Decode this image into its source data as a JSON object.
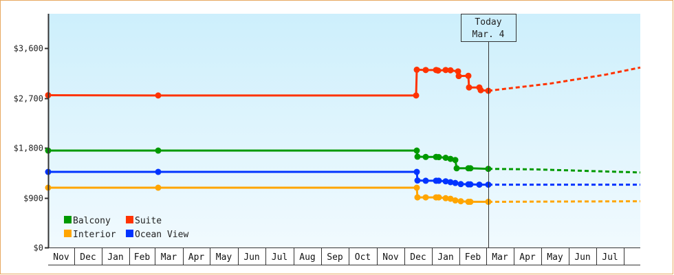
{
  "chart_data": {
    "type": "line",
    "title": "",
    "xlabel": "",
    "ylabel": "",
    "ylim": [
      0,
      4250
    ],
    "yticks": [
      {
        "value": 0,
        "label": "$0"
      },
      {
        "value": 900,
        "label": "$900"
      },
      {
        "value": 1800,
        "label": "$1,800"
      },
      {
        "value": 2700,
        "label": "$2,700"
      },
      {
        "value": 3600,
        "label": "$3,600"
      }
    ],
    "months": [
      "Nov",
      "Dec",
      "Jan",
      "Feb",
      "Mar",
      "Apr",
      "May",
      "Jun",
      "Jul",
      "Aug",
      "Sep",
      "Oct",
      "Nov",
      "Dec",
      "Jan",
      "Feb",
      "Mar",
      "Apr",
      "May",
      "Jun",
      "Jul"
    ],
    "grid": false,
    "legend_position": "bottom-left inside",
    "today_marker": {
      "line1": "Today",
      "line2": "Mar. 4"
    },
    "series": [
      {
        "name": "Balcony",
        "color": "#009900",
        "points": [
          {
            "x": 70,
            "v": 1750
          },
          {
            "x": 230,
            "v": 1750
          },
          {
            "x": 606,
            "v": 1750
          },
          {
            "x": 607,
            "v": 1640
          },
          {
            "x": 619,
            "v": 1635
          },
          {
            "x": 634,
            "v": 1635
          },
          {
            "x": 638,
            "v": 1632
          },
          {
            "x": 648,
            "v": 1620
          },
          {
            "x": 655,
            "v": 1600
          },
          {
            "x": 662,
            "v": 1580
          },
          {
            "x": 664,
            "v": 1430
          },
          {
            "x": 681,
            "v": 1430
          },
          {
            "x": 684,
            "v": 1430
          },
          {
            "x": 710,
            "v": 1420
          }
        ],
        "projection": [
          {
            "x": 710,
            "v": 1420
          },
          {
            "x": 780,
            "v": 1410
          },
          {
            "x": 860,
            "v": 1380
          },
          {
            "x": 931,
            "v": 1355
          }
        ]
      },
      {
        "name": "Suite",
        "color": "#ff3300",
        "points": [
          {
            "x": 70,
            "v": 2750
          },
          {
            "x": 230,
            "v": 2745
          },
          {
            "x": 605,
            "v": 2745
          },
          {
            "x": 606,
            "v": 3210
          },
          {
            "x": 619,
            "v": 3205
          },
          {
            "x": 634,
            "v": 3205
          },
          {
            "x": 637,
            "v": 3195
          },
          {
            "x": 648,
            "v": 3205
          },
          {
            "x": 655,
            "v": 3200
          },
          {
            "x": 666,
            "v": 3180
          },
          {
            "x": 667,
            "v": 3095
          },
          {
            "x": 681,
            "v": 3100
          },
          {
            "x": 682,
            "v": 2890
          },
          {
            "x": 697,
            "v": 2890
          },
          {
            "x": 699,
            "v": 2840
          },
          {
            "x": 710,
            "v": 2830
          }
        ],
        "projection": [
          {
            "x": 710,
            "v": 2830
          },
          {
            "x": 800,
            "v": 2960
          },
          {
            "x": 880,
            "v": 3120
          },
          {
            "x": 931,
            "v": 3250
          }
        ]
      },
      {
        "name": "Interior",
        "color": "#ffa500",
        "points": [
          {
            "x": 70,
            "v": 1080
          },
          {
            "x": 230,
            "v": 1080
          },
          {
            "x": 606,
            "v": 1080
          },
          {
            "x": 607,
            "v": 905
          },
          {
            "x": 619,
            "v": 905
          },
          {
            "x": 634,
            "v": 905
          },
          {
            "x": 638,
            "v": 905
          },
          {
            "x": 648,
            "v": 890
          },
          {
            "x": 655,
            "v": 880
          },
          {
            "x": 662,
            "v": 850
          },
          {
            "x": 670,
            "v": 835
          },
          {
            "x": 681,
            "v": 825
          },
          {
            "x": 684,
            "v": 825
          },
          {
            "x": 710,
            "v": 825
          }
        ],
        "projection": [
          {
            "x": 710,
            "v": 825
          },
          {
            "x": 812,
            "v": 830
          },
          {
            "x": 931,
            "v": 835
          }
        ]
      },
      {
        "name": "Ocean View",
        "color": "#0033ff",
        "points": [
          {
            "x": 70,
            "v": 1365
          },
          {
            "x": 230,
            "v": 1365
          },
          {
            "x": 606,
            "v": 1365
          },
          {
            "x": 607,
            "v": 1210
          },
          {
            "x": 619,
            "v": 1205
          },
          {
            "x": 634,
            "v": 1205
          },
          {
            "x": 638,
            "v": 1205
          },
          {
            "x": 648,
            "v": 1195
          },
          {
            "x": 655,
            "v": 1180
          },
          {
            "x": 662,
            "v": 1165
          },
          {
            "x": 670,
            "v": 1145
          },
          {
            "x": 681,
            "v": 1140
          },
          {
            "x": 684,
            "v": 1140
          },
          {
            "x": 697,
            "v": 1135
          },
          {
            "x": 710,
            "v": 1135
          }
        ],
        "projection": [
          {
            "x": 710,
            "v": 1135
          },
          {
            "x": 931,
            "v": 1135
          }
        ]
      }
    ]
  },
  "legend": {
    "items": [
      {
        "label": "Balcony",
        "color": "#009900"
      },
      {
        "label": "Suite",
        "color": "#ff3300"
      },
      {
        "label": "Interior",
        "color": "#ffa500"
      },
      {
        "label": "Ocean View",
        "color": "#0033ff"
      }
    ]
  },
  "colors": {
    "frame_border": "#e8a860",
    "plot_bg_top": "#cdeffc",
    "plot_bg_bottom": "#f1fafe",
    "axis": "#333333"
  }
}
